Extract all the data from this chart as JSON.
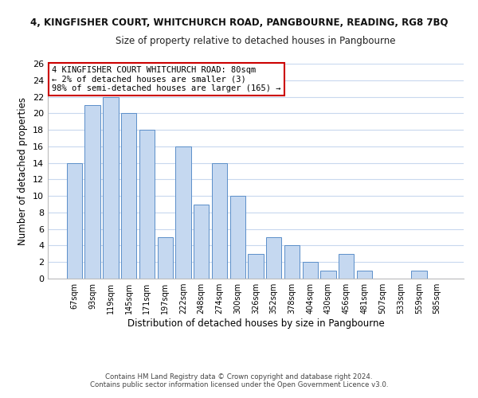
{
  "title_line1": "4, KINGFISHER COURT, WHITCHURCH ROAD, PANGBOURNE, READING, RG8 7BQ",
  "title_line2": "Size of property relative to detached houses in Pangbourne",
  "xlabel": "Distribution of detached houses by size in Pangbourne",
  "ylabel": "Number of detached properties",
  "bar_labels": [
    "67sqm",
    "93sqm",
    "119sqm",
    "145sqm",
    "171sqm",
    "197sqm",
    "222sqm",
    "248sqm",
    "274sqm",
    "300sqm",
    "326sqm",
    "352sqm",
    "378sqm",
    "404sqm",
    "430sqm",
    "456sqm",
    "481sqm",
    "507sqm",
    "533sqm",
    "559sqm",
    "585sqm"
  ],
  "bar_heights": [
    14,
    21,
    22,
    20,
    18,
    5,
    16,
    9,
    14,
    10,
    3,
    5,
    4,
    2,
    1,
    3,
    1,
    0,
    0,
    1,
    0
  ],
  "bar_color": "#c5d8f0",
  "bar_edge_color": "#5b8fc9",
  "annotation_box_text": "4 KINGFISHER COURT WHITCHURCH ROAD: 80sqm\n← 2% of detached houses are smaller (3)\n98% of semi-detached houses are larger (165) →",
  "annotation_box_color": "#ffffff",
  "annotation_box_edge_color": "#cc0000",
  "ylim": [
    0,
    26
  ],
  "yticks": [
    0,
    2,
    4,
    6,
    8,
    10,
    12,
    14,
    16,
    18,
    20,
    22,
    24,
    26
  ],
  "footer_line1": "Contains HM Land Registry data © Crown copyright and database right 2024.",
  "footer_line2": "Contains public sector information licensed under the Open Government Licence v3.0.",
  "bg_color": "#ffffff",
  "grid_color": "#c8d8ee"
}
